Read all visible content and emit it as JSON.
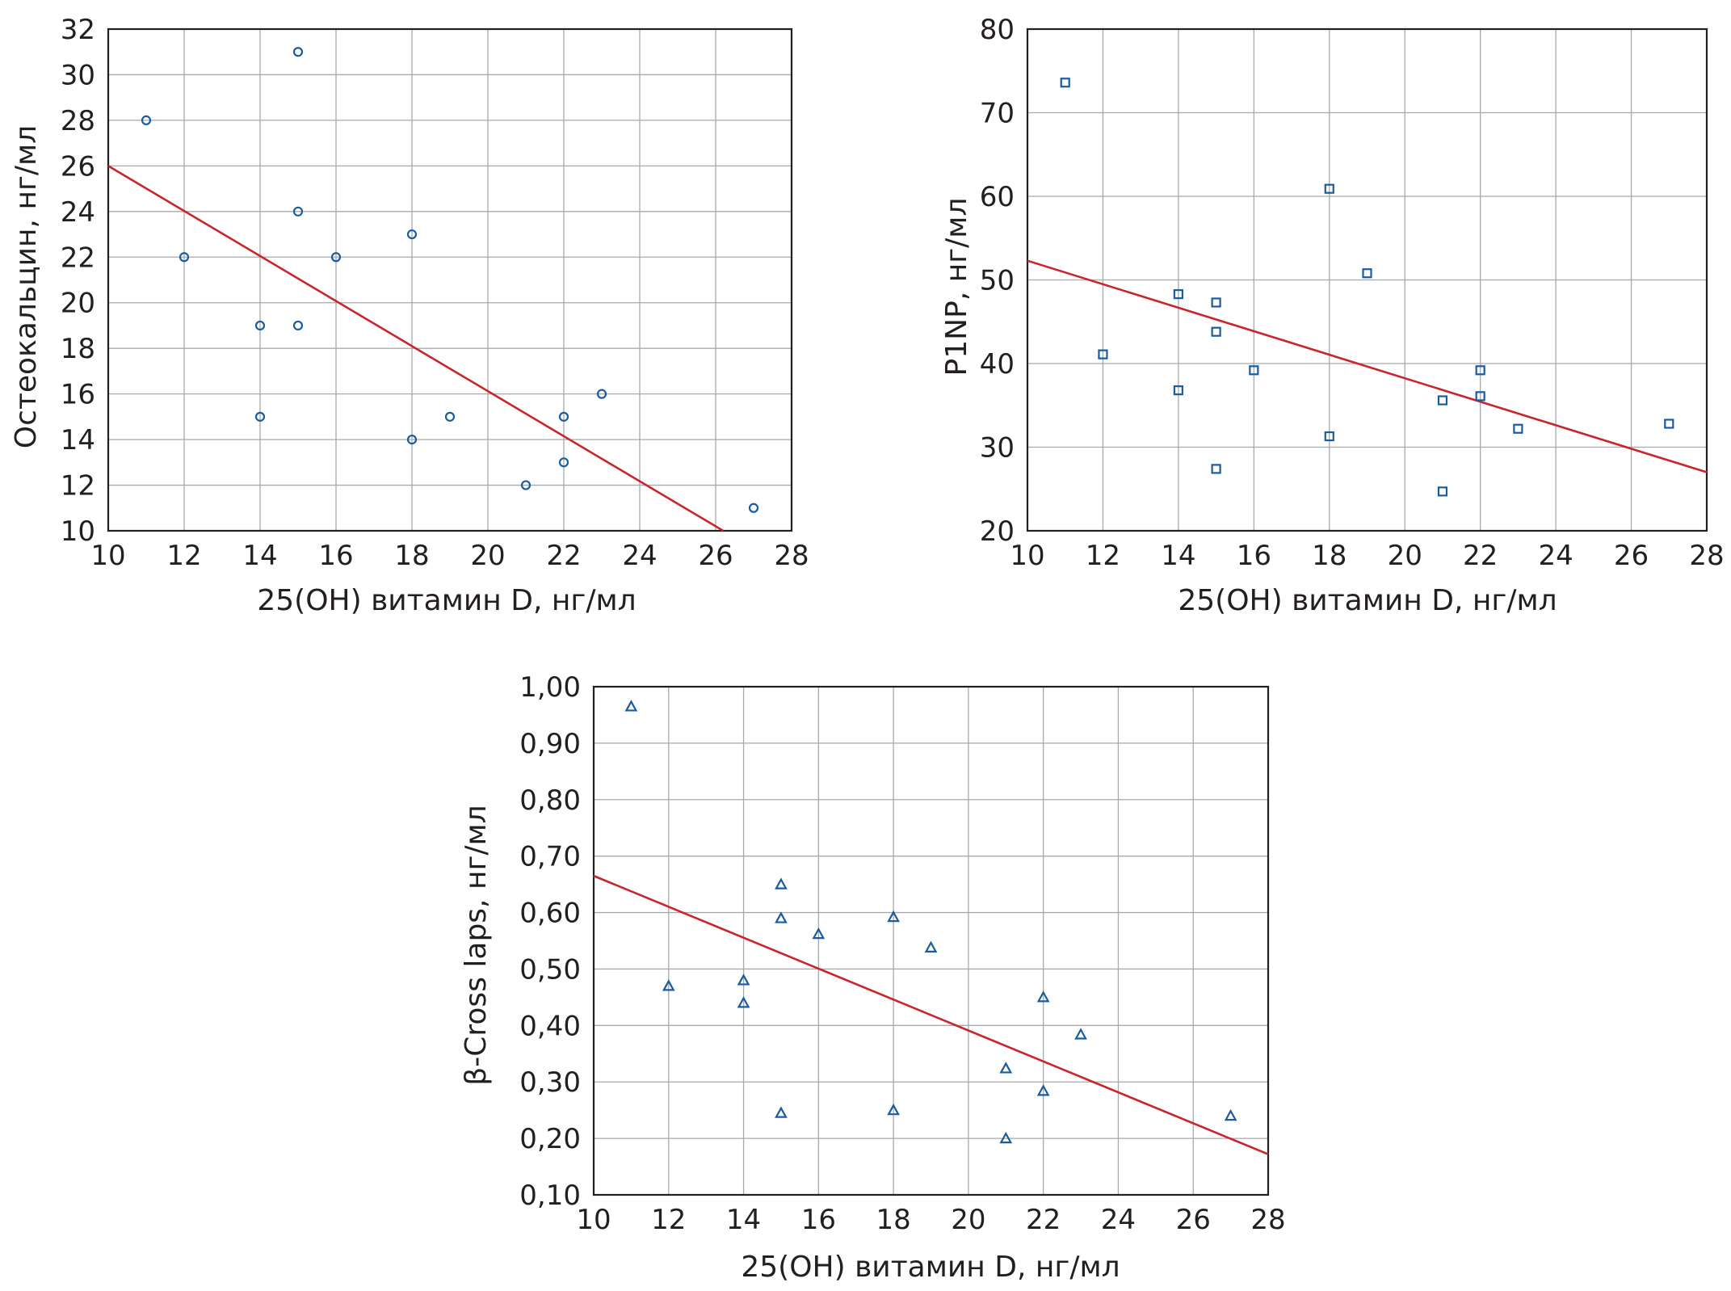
{
  "chart_data": [
    {
      "type": "scatter",
      "xlabel": "25(OH) витамин D, нг/мл",
      "ylabel": "Остеокальцин, нг/мл",
      "xlim": [
        10,
        28
      ],
      "ylim": [
        10,
        32
      ],
      "xticks": [
        10,
        12,
        14,
        16,
        18,
        20,
        22,
        24,
        26,
        28
      ],
      "yticks": [
        10,
        12,
        14,
        16,
        18,
        20,
        22,
        24,
        26,
        28,
        30,
        32
      ],
      "xtick_labels": [
        "10",
        "12",
        "14",
        "16",
        "18",
        "20",
        "22",
        "24",
        "26",
        "28"
      ],
      "ytick_labels": [
        "10",
        "12",
        "14",
        "16",
        "18",
        "20",
        "22",
        "24",
        "26",
        "28",
        "30",
        "32"
      ],
      "marker": "circle",
      "points": [
        [
          11,
          28
        ],
        [
          12,
          22
        ],
        [
          14,
          19
        ],
        [
          14,
          15
        ],
        [
          15,
          31
        ],
        [
          15,
          24
        ],
        [
          15,
          19
        ],
        [
          16,
          22
        ],
        [
          18,
          23
        ],
        [
          18,
          14
        ],
        [
          19,
          15
        ],
        [
          21,
          12
        ],
        [
          22,
          15
        ],
        [
          22,
          13
        ],
        [
          23,
          16
        ],
        [
          27,
          11
        ]
      ],
      "trend_line": [
        [
          10,
          26.0
        ],
        [
          26.2,
          10.0
        ]
      ],
      "grid": true,
      "marker_color": "#1b5c9c",
      "line_color": "#c8252c"
    },
    {
      "type": "scatter",
      "xlabel": "25(OH) витамин D, нг/мл",
      "ylabel": "P1NP, нг/мл",
      "xlim": [
        10,
        28
      ],
      "ylim": [
        20,
        80
      ],
      "xticks": [
        10,
        12,
        14,
        16,
        18,
        20,
        22,
        24,
        26,
        28
      ],
      "yticks": [
        20,
        30,
        40,
        50,
        60,
        70,
        80
      ],
      "xtick_labels": [
        "10",
        "12",
        "14",
        "16",
        "18",
        "20",
        "22",
        "24",
        "26",
        "28"
      ],
      "ytick_labels": [
        "20",
        "30",
        "40",
        "50",
        "60",
        "70",
        "80"
      ],
      "marker": "square",
      "points": [
        [
          11,
          73.6
        ],
        [
          12,
          41.1
        ],
        [
          14,
          48.3
        ],
        [
          14,
          36.8
        ],
        [
          15,
          47.3
        ],
        [
          15,
          43.8
        ],
        [
          15,
          27.4
        ],
        [
          16,
          39.2
        ],
        [
          18,
          60.9
        ],
        [
          18,
          31.3
        ],
        [
          19,
          50.8
        ],
        [
          21,
          35.6
        ],
        [
          21,
          24.7
        ],
        [
          22,
          39.2
        ],
        [
          22,
          36.1
        ],
        [
          23,
          32.2
        ],
        [
          27,
          32.8
        ]
      ],
      "trend_line": [
        [
          10,
          52.3
        ],
        [
          28,
          27.0
        ]
      ],
      "grid": true,
      "marker_color": "#1b5c9c",
      "line_color": "#c8252c"
    },
    {
      "type": "scatter",
      "xlabel": "25(OH) витамин D, нг/мл",
      "ylabel": "β-Cross laps, нг/мл",
      "xlim": [
        10,
        28
      ],
      "ylim": [
        0.1,
        1.0
      ],
      "xticks": [
        10,
        12,
        14,
        16,
        18,
        20,
        22,
        24,
        26,
        28
      ],
      "yticks": [
        0.1,
        0.2,
        0.3,
        0.4,
        0.5,
        0.6,
        0.7,
        0.8,
        0.9,
        1.0
      ],
      "xtick_labels": [
        "10",
        "12",
        "14",
        "16",
        "18",
        "20",
        "22",
        "24",
        "26",
        "28"
      ],
      "ytick_labels": [
        "0,10",
        "0,20",
        "0,30",
        "0,40",
        "0,50",
        "0,60",
        "0,70",
        "0,80",
        "0,90",
        "1,00"
      ],
      "marker": "triangle",
      "points": [
        [
          11,
          0.965
        ],
        [
          12,
          0.47
        ],
        [
          14,
          0.48
        ],
        [
          14,
          0.44
        ],
        [
          15,
          0.65
        ],
        [
          15,
          0.59
        ],
        [
          15,
          0.245
        ],
        [
          16,
          0.562
        ],
        [
          18,
          0.592
        ],
        [
          18,
          0.25
        ],
        [
          19,
          0.538
        ],
        [
          21,
          0.324
        ],
        [
          21,
          0.2
        ],
        [
          22,
          0.45
        ],
        [
          22,
          0.284
        ],
        [
          23,
          0.384
        ],
        [
          27,
          0.24
        ]
      ],
      "trend_line": [
        [
          10,
          0.665
        ],
        [
          28,
          0.172
        ]
      ],
      "grid": true,
      "marker_color": "#1b5c9c",
      "line_color": "#c8252c"
    }
  ]
}
